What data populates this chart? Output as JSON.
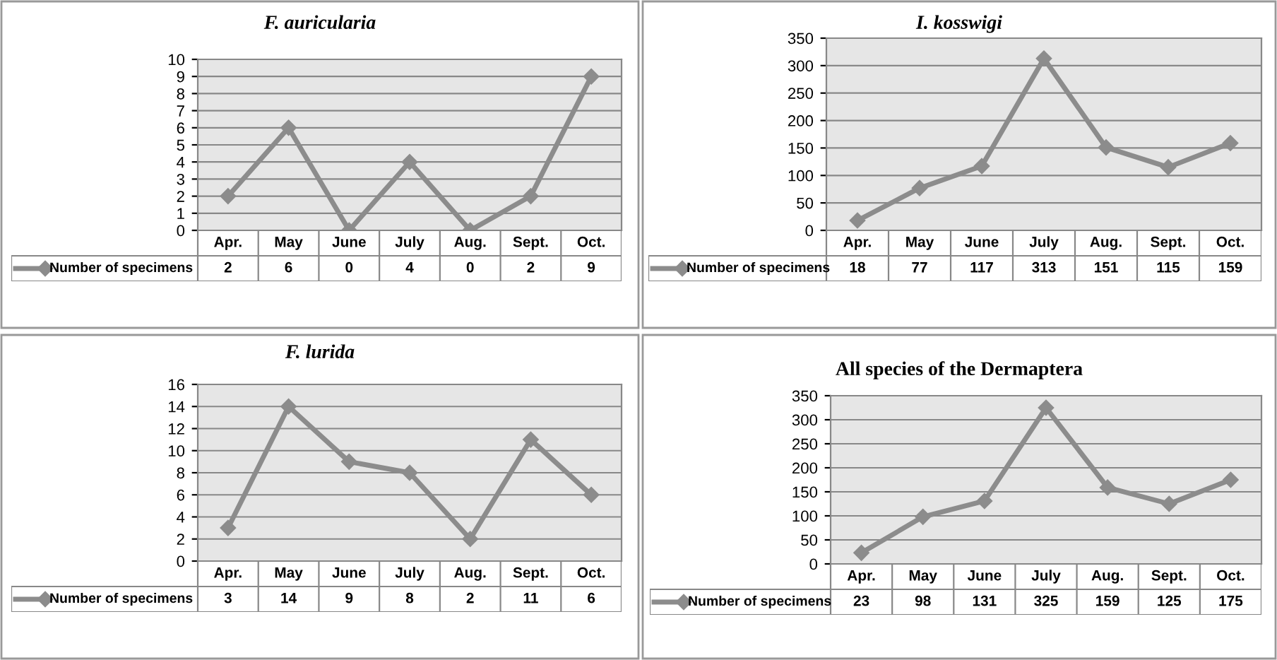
{
  "chart_data": [
    {
      "type": "line",
      "title": "F. auricularia",
      "categories": [
        "Apr.",
        "May",
        "June",
        "July",
        "Aug.",
        "Sept.",
        "Oct."
      ],
      "series": [
        {
          "name": "Number of specimens",
          "color": "#8c8c8c",
          "values": [
            2,
            6,
            0,
            4,
            0,
            2,
            9
          ]
        }
      ],
      "ylim": [
        0,
        10
      ],
      "yticks": [
        0,
        1,
        2,
        3,
        4,
        5,
        6,
        7,
        8,
        9,
        10
      ],
      "grid": "y",
      "legend": "bottom",
      "marker": "diamond",
      "line_style": "solid",
      "data_labels": true
    },
    {
      "type": "line",
      "title": "I. kosswigi",
      "categories": [
        "Apr.",
        "May",
        "June",
        "July",
        "Aug.",
        "Sept.",
        "Oct."
      ],
      "series": [
        {
          "name": "Number of specimens",
          "color": "#8c8c8c",
          "values": [
            18,
            77,
            117,
            313,
            151,
            115,
            159
          ]
        }
      ],
      "ylim": [
        0,
        350
      ],
      "yticks": [
        0,
        50,
        100,
        150,
        200,
        250,
        300,
        350
      ],
      "grid": "y",
      "legend": "bottom",
      "marker": "diamond",
      "line_style": "solid",
      "data_labels": true
    },
    {
      "type": "line",
      "title": "F. lurida",
      "categories": [
        "Apr.",
        "May",
        "June",
        "July",
        "Aug.",
        "Sept.",
        "Oct."
      ],
      "series": [
        {
          "name": "Number of specimens",
          "color": "#8c8c8c",
          "values": [
            3,
            14,
            9,
            8,
            2,
            11,
            6
          ]
        }
      ],
      "ylim": [
        0,
        16
      ],
      "yticks": [
        0,
        2,
        4,
        6,
        8,
        10,
        12,
        14,
        16
      ],
      "grid": "y",
      "legend": "bottom",
      "marker": "diamond",
      "line_style": "solid",
      "data_labels": true
    },
    {
      "type": "line",
      "title": "All species of the Dermaptera",
      "categories": [
        "Apr.",
        "May",
        "June",
        "July",
        "Aug.",
        "Sept.",
        "Oct."
      ],
      "series": [
        {
          "name": "Number of specimens",
          "color": "#8c8c8c",
          "values": [
            23,
            98,
            131,
            325,
            159,
            125,
            175
          ]
        }
      ],
      "ylim": [
        0,
        350
      ],
      "yticks": [
        0,
        50,
        100,
        150,
        200,
        250,
        300,
        350
      ],
      "grid": "y",
      "legend": "bottom",
      "marker": "diamond",
      "line_style": "solid",
      "data_labels": true
    }
  ]
}
